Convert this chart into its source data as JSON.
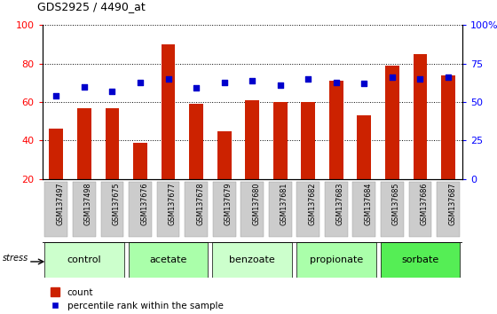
{
  "title": "GDS2925 / 4490_at",
  "samples": [
    "GSM137497",
    "GSM137498",
    "GSM137675",
    "GSM137676",
    "GSM137677",
    "GSM137678",
    "GSM137679",
    "GSM137680",
    "GSM137681",
    "GSM137682",
    "GSM137683",
    "GSM137684",
    "GSM137685",
    "GSM137686",
    "GSM137687"
  ],
  "red_bars": [
    46,
    57,
    57,
    39,
    90,
    59,
    45,
    61,
    60,
    60,
    71,
    53,
    79,
    85,
    74
  ],
  "blue_squares_pct": [
    54,
    60,
    57,
    63,
    65,
    59,
    63,
    64,
    61,
    65,
    63,
    62,
    66,
    65,
    66
  ],
  "group_spans": [
    {
      "label": "control",
      "start": 0,
      "end": 2,
      "color": "#ccffcc"
    },
    {
      "label": "acetate",
      "start": 3,
      "end": 5,
      "color": "#aaffaa"
    },
    {
      "label": "benzoate",
      "start": 6,
      "end": 8,
      "color": "#ccffcc"
    },
    {
      "label": "propionate",
      "start": 9,
      "end": 11,
      "color": "#aaffaa"
    },
    {
      "label": "sorbate",
      "start": 12,
      "end": 14,
      "color": "#55ee55"
    }
  ],
  "ylim_left": [
    20,
    100
  ],
  "yticks_left": [
    20,
    40,
    60,
    80,
    100
  ],
  "yticks_right": [
    0,
    25,
    50,
    75,
    100
  ],
  "ytick_labels_right": [
    "0",
    "25",
    "50",
    "75",
    "100%"
  ],
  "bar_color": "#cc2200",
  "square_color": "#0000cc",
  "legend_count": "count",
  "legend_pct": "percentile rank within the sample"
}
